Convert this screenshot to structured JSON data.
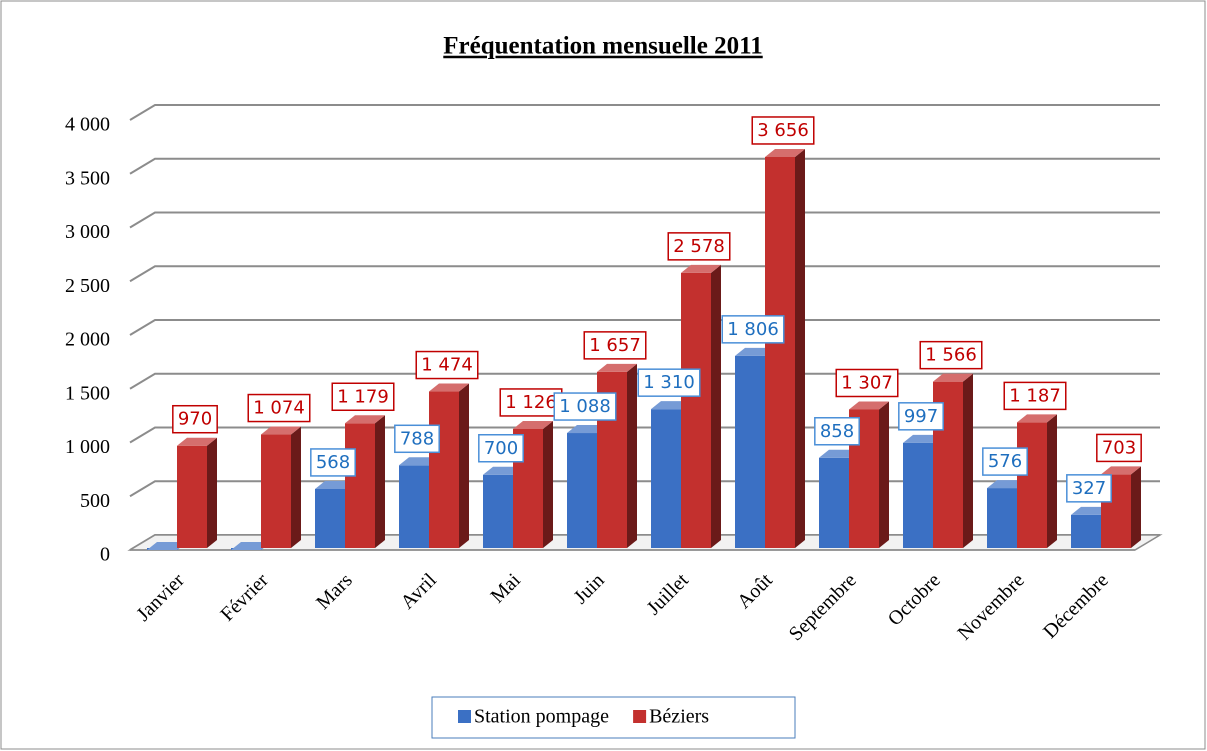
{
  "chart_data": {
    "type": "bar3d",
    "title": "Fréquentation mensuelle 2011",
    "categories": [
      "Janvier",
      "Février",
      "Mars",
      "Avril",
      "Mai",
      "Juin",
      "Juillet",
      "Août",
      "Septembre",
      "Octobre",
      "Novembre",
      "Décembre"
    ],
    "series": [
      {
        "name": "Station pompage",
        "color": "#3b70c4",
        "values": [
          0,
          0,
          568,
          788,
          700,
          1088,
          1310,
          1806,
          858,
          997,
          576,
          327
        ],
        "value_labels": [
          null,
          null,
          "568",
          "788",
          "700",
          "1 088",
          "1 310",
          "1 806",
          "858",
          "997",
          "576",
          "327"
        ]
      },
      {
        "name": "Béziers",
        "color": "#c3302e",
        "values": [
          970,
          1074,
          1179,
          1474,
          1126,
          1657,
          2578,
          3656,
          1307,
          1566,
          1187,
          703
        ],
        "value_labels": [
          "970",
          "1 074",
          "1 179",
          "1 474",
          "1 126",
          "1 657",
          "2 578",
          "3 656",
          "1 307",
          "1 566",
          "1 187",
          "703"
        ]
      }
    ],
    "ylim": [
      0,
      4000
    ],
    "yticks": [
      0,
      500,
      {
        "value": 1000,
        "label": "1 000"
      },
      {
        "value": 1500,
        "label": "1 500"
      },
      {
        "value": 2000,
        "label": "2 000"
      },
      {
        "value": 2500,
        "label": "2 500"
      },
      {
        "value": 3000,
        "label": "3 000"
      },
      {
        "value": 3500,
        "label": "3 500"
      },
      {
        "value": 4000,
        "label": "4 000"
      }
    ],
    "grid": true,
    "legend": "bottom"
  }
}
